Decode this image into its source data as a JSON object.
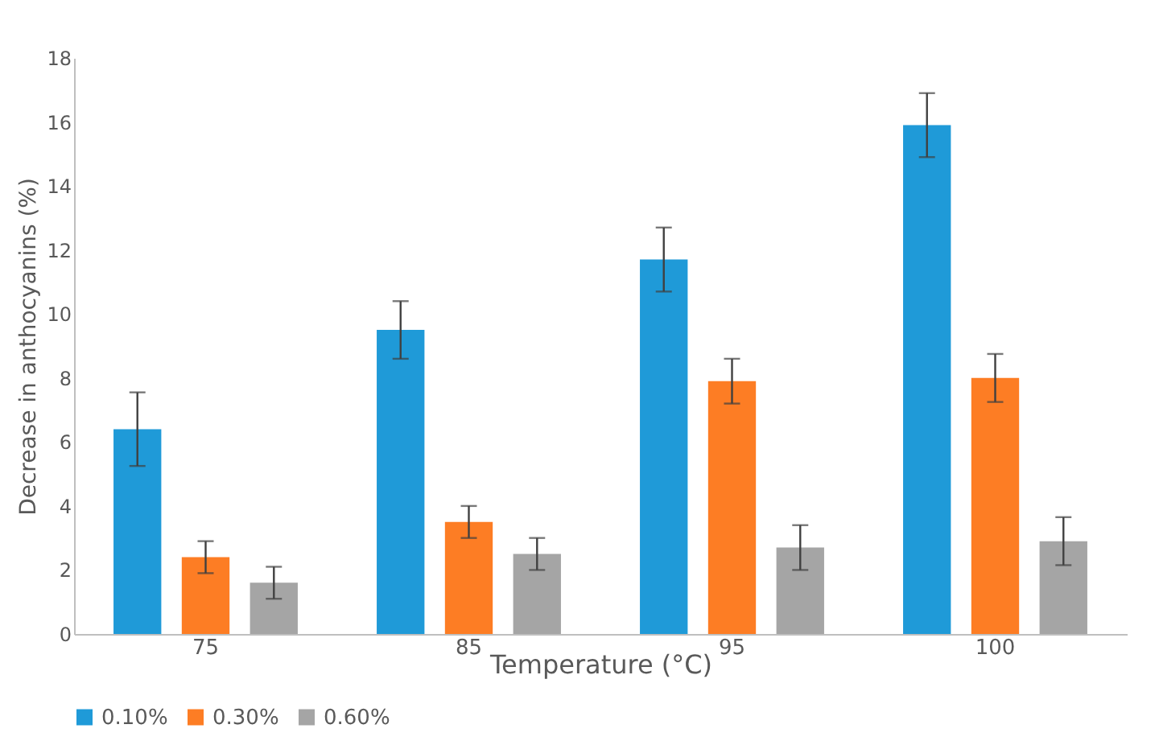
{
  "chart_data": {
    "type": "bar",
    "xlabel": "Temperature (°C)",
    "ylabel": "Decrease in anthocyanins (%)",
    "categories": [
      "75",
      "85",
      "95",
      "100"
    ],
    "series": [
      {
        "name": "0.10%",
        "color": "#1f9ad8",
        "values": [
          6.4,
          9.5,
          11.7,
          15.9
        ],
        "errors": [
          1.15,
          0.9,
          1.0,
          1.0
        ]
      },
      {
        "name": "0.30%",
        "color": "#fd7d24",
        "values": [
          2.4,
          3.5,
          7.9,
          8.0
        ],
        "errors": [
          0.5,
          0.5,
          0.7,
          0.75
        ]
      },
      {
        "name": "0.60%",
        "color": "#a5a5a5",
        "values": [
          1.6,
          2.5,
          2.7,
          2.9
        ],
        "errors": [
          0.5,
          0.5,
          0.7,
          0.75
        ]
      }
    ],
    "ylim": [
      0,
      18
    ],
    "yticks": [
      0,
      2,
      4,
      6,
      8,
      10,
      12,
      14,
      16,
      18
    ],
    "grid": false,
    "legend": "bottom"
  }
}
